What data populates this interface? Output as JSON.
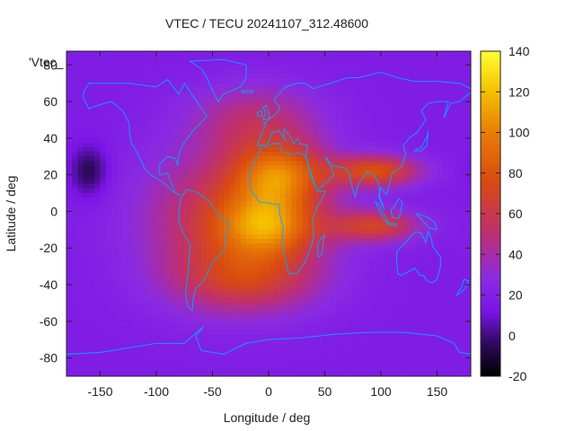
{
  "chart_data": {
    "type": "heatmap",
    "title": "VTEC / TECU 20241107_312.48600",
    "xlabel": "Longitude / deg",
    "ylabel": "Latitude / deg",
    "xlim": [
      -180,
      180
    ],
    "ylim": [
      -90,
      87.5
    ],
    "x_ticks": [
      -150,
      -100,
      -50,
      0,
      50,
      100,
      150
    ],
    "y_ticks": [
      -80,
      -60,
      -40,
      -20,
      0,
      20,
      40,
      60,
      80
    ],
    "colorbar": {
      "range": [
        -20,
        140
      ],
      "ticks": [
        -20,
        0,
        20,
        40,
        60,
        80,
        100,
        120,
        140
      ],
      "palette": [
        "#000000",
        "#2d0a5c",
        "#7a14e6",
        "#8a2be2",
        "#c0306a",
        "#d94a10",
        "#e87d05",
        "#f5c000",
        "#ffff33"
      ]
    },
    "legend": {
      "entries": [
        "'Vtec_"
      ],
      "position": "top-left"
    },
    "overlay": "coastlines",
    "coastline_color": "#00aaff",
    "grid": false,
    "cell_size_deg": [
      5,
      2.5
    ],
    "field_components": {
      "background_tecu": 18,
      "features": [
        {
          "feature": "american_sector_crest",
          "lon": -30,
          "lat": -5,
          "peak_tecu": 48
        },
        {
          "feature": "africa_northern_crest",
          "lon": 10,
          "lat": 20,
          "peak_tecu": 60
        },
        {
          "feature": "africa_southern_crest",
          "lon": 0,
          "lat": -8,
          "peak_tecu": 55
        },
        {
          "feature": "asia_northern_crest",
          "lon": 95,
          "lat": 22,
          "peak_tecu": 58
        },
        {
          "feature": "asia_southern_crest",
          "lon": 95,
          "lat": -8,
          "peak_tecu": 48
        },
        {
          "feature": "southern_mid_latitude_region",
          "lon": -20,
          "lat": -38,
          "peak_tecu": 32
        },
        {
          "feature": "northern_mid_latitude_region",
          "lon": -10,
          "lat": 50,
          "peak_tecu": 28
        },
        {
          "feature": "north_pacific_depletion",
          "lon": -160,
          "lat": 22,
          "peak_tecu": -25
        }
      ]
    }
  }
}
